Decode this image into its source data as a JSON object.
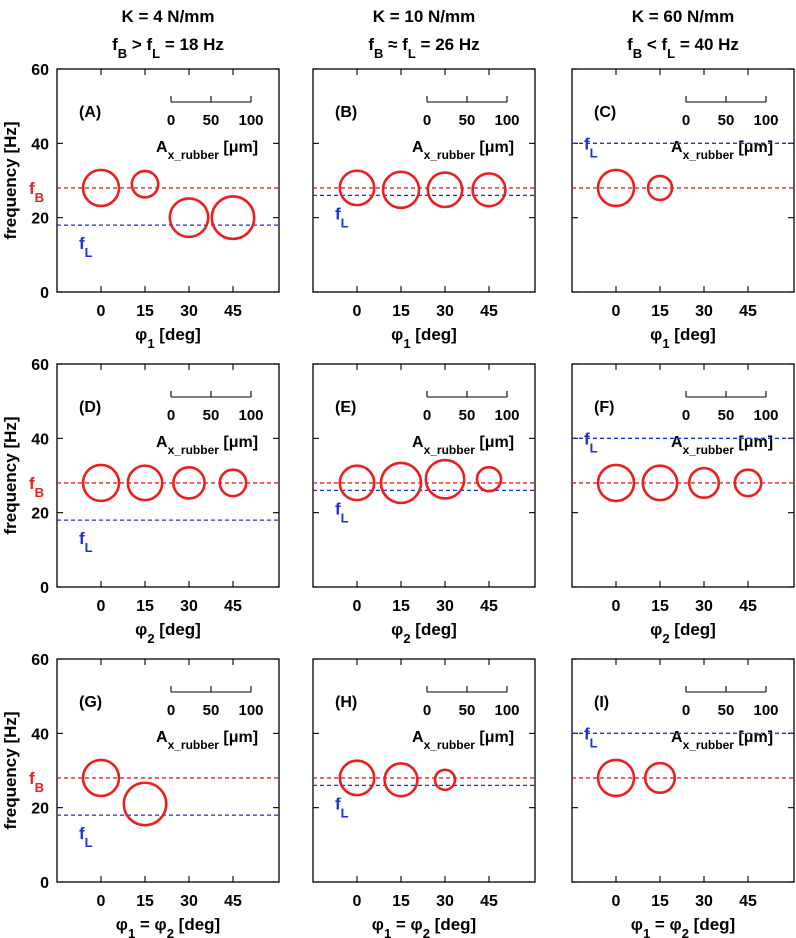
{
  "columns": [
    {
      "line1": "K = 4 N/mm",
      "line2_pre": "f",
      "line2_sub": "B",
      "line2_mid": " > f",
      "line2_sub2": "L",
      "line2_post": " = 18 Hz"
    },
    {
      "line1": "K = 10 N/mm",
      "line2_pre": "f",
      "line2_sub": "B",
      "line2_mid": " ≈ f",
      "line2_sub2": "L",
      "line2_post": " = 26 Hz"
    },
    {
      "line1": "K = 60 N/mm",
      "line2_pre": "f",
      "line2_sub": "B",
      "line2_mid": " < f",
      "line2_sub2": "L",
      "line2_post": " = 40 Hz"
    }
  ],
  "ylabel": "frequency [Hz]",
  "row_xlabels": [
    {
      "pre": "φ",
      "sub": "1",
      "post": " [deg]"
    },
    {
      "pre": "φ",
      "sub": "2",
      "post": " [deg]"
    },
    {
      "pre": "φ",
      "sub": "1",
      "mid": " = φ",
      "sub2": "2",
      "post": " [deg]"
    }
  ],
  "fB_label": {
    "pre": "f",
    "sub": "B"
  },
  "fL_label": {
    "pre": "f",
    "sub": "L"
  },
  "scale_legend": {
    "ticks": [
      "0",
      "50",
      "100"
    ],
    "label_pre": "A",
    "label_sub": "x_rubber",
    "label_post": " [μm]"
  },
  "colors": {
    "fB": "#e8211f",
    "fL": "#1f2fd6",
    "circle": "#e8211f",
    "axis": "#000000"
  },
  "chart_data": [
    {
      "type": "scatter",
      "panel": "(A)",
      "xticks": [
        0,
        15,
        30,
        45
      ],
      "ylim": [
        0,
        60
      ],
      "yticks": [
        0,
        20,
        40,
        60
      ],
      "fB": 28,
      "fL": 18,
      "points": [
        {
          "x": 0,
          "y": 28,
          "amplitude": 45
        },
        {
          "x": 15,
          "y": 29,
          "amplitude": 33
        },
        {
          "x": 30,
          "y": 20,
          "amplitude": 48
        },
        {
          "x": 45,
          "y": 20,
          "amplitude": 53
        }
      ]
    },
    {
      "type": "scatter",
      "panel": "(B)",
      "xticks": [
        0,
        15,
        30,
        45
      ],
      "ylim": [
        0,
        60
      ],
      "yticks": [
        0,
        20,
        40,
        60
      ],
      "fB": 28,
      "fL": 26,
      "points": [
        {
          "x": 0,
          "y": 28,
          "amplitude": 43
        },
        {
          "x": 15,
          "y": 27.5,
          "amplitude": 45
        },
        {
          "x": 30,
          "y": 27.5,
          "amplitude": 43
        },
        {
          "x": 45,
          "y": 27.5,
          "amplitude": 41
        }
      ]
    },
    {
      "type": "scatter",
      "panel": "(C)",
      "xticks": [
        0,
        15,
        30,
        45
      ],
      "ylim": [
        0,
        60
      ],
      "yticks": [
        0,
        20,
        40,
        60
      ],
      "fB": 28,
      "fL": 40,
      "points": [
        {
          "x": 0,
          "y": 28,
          "amplitude": 45
        },
        {
          "x": 15,
          "y": 28,
          "amplitude": 30
        }
      ]
    },
    {
      "type": "scatter",
      "panel": "(D)",
      "xticks": [
        0,
        15,
        30,
        45
      ],
      "ylim": [
        0,
        60
      ],
      "yticks": [
        0,
        20,
        40,
        60
      ],
      "fB": 28,
      "fL": 18,
      "points": [
        {
          "x": 0,
          "y": 28,
          "amplitude": 45
        },
        {
          "x": 15,
          "y": 28,
          "amplitude": 43
        },
        {
          "x": 30,
          "y": 28,
          "amplitude": 39
        },
        {
          "x": 45,
          "y": 28,
          "amplitude": 33
        }
      ]
    },
    {
      "type": "scatter",
      "panel": "(E)",
      "xticks": [
        0,
        15,
        30,
        45
      ],
      "ylim": [
        0,
        60
      ],
      "yticks": [
        0,
        20,
        40,
        60
      ],
      "fB": 28,
      "fL": 26,
      "points": [
        {
          "x": 0,
          "y": 28,
          "amplitude": 43
        },
        {
          "x": 15,
          "y": 28,
          "amplitude": 50
        },
        {
          "x": 30,
          "y": 29,
          "amplitude": 48
        },
        {
          "x": 45,
          "y": 29,
          "amplitude": 30
        }
      ]
    },
    {
      "type": "scatter",
      "panel": "(F)",
      "xticks": [
        0,
        15,
        30,
        45
      ],
      "ylim": [
        0,
        60
      ],
      "yticks": [
        0,
        20,
        40,
        60
      ],
      "fB": 28,
      "fL": 40,
      "points": [
        {
          "x": 0,
          "y": 28,
          "amplitude": 45
        },
        {
          "x": 15,
          "y": 28,
          "amplitude": 43
        },
        {
          "x": 30,
          "y": 28,
          "amplitude": 37
        },
        {
          "x": 45,
          "y": 28,
          "amplitude": 33
        }
      ]
    },
    {
      "type": "scatter",
      "panel": "(G)",
      "xticks": [
        0,
        15,
        30,
        45
      ],
      "ylim": [
        0,
        60
      ],
      "yticks": [
        0,
        20,
        40,
        60
      ],
      "fB": 28,
      "fL": 18,
      "points": [
        {
          "x": 0,
          "y": 28,
          "amplitude": 45
        },
        {
          "x": 15,
          "y": 21,
          "amplitude": 53
        }
      ]
    },
    {
      "type": "scatter",
      "panel": "(H)",
      "xticks": [
        0,
        15,
        30,
        45
      ],
      "ylim": [
        0,
        60
      ],
      "yticks": [
        0,
        20,
        40,
        60
      ],
      "fB": 28,
      "fL": 26,
      "points": [
        {
          "x": 0,
          "y": 28,
          "amplitude": 43
        },
        {
          "x": 15,
          "y": 27.5,
          "amplitude": 41
        },
        {
          "x": 30,
          "y": 27.5,
          "amplitude": 25
        }
      ]
    },
    {
      "type": "scatter",
      "panel": "(I)",
      "xticks": [
        0,
        15,
        30,
        45
      ],
      "ylim": [
        0,
        60
      ],
      "yticks": [
        0,
        20,
        40,
        60
      ],
      "fB": 28,
      "fL": 40,
      "points": [
        {
          "x": 0,
          "y": 28,
          "amplitude": 45
        },
        {
          "x": 15,
          "y": 28,
          "amplitude": 37
        }
      ]
    }
  ]
}
